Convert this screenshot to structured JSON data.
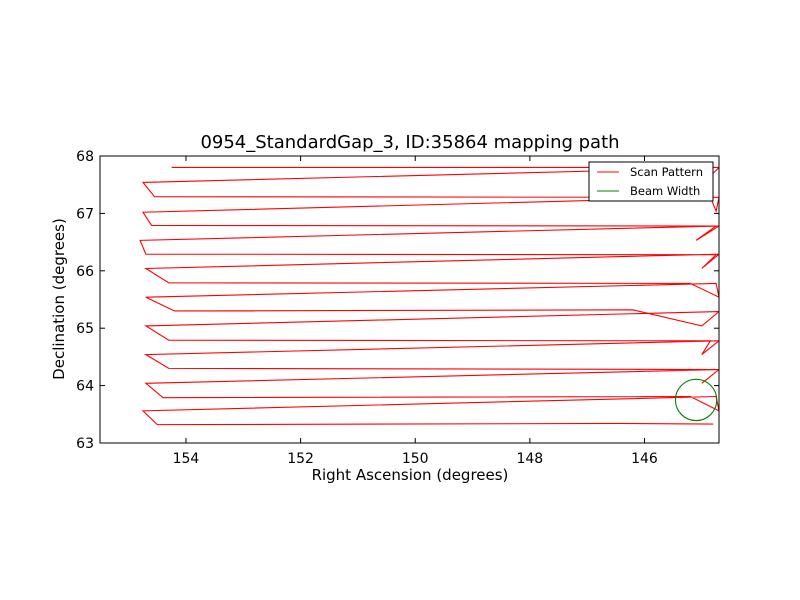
{
  "chart_data": {
    "type": "line",
    "title": "0954_StandardGap_3, ID:35864 mapping path",
    "xlabel": "Right Ascension (degrees)",
    "ylabel": "Declination (degrees)",
    "xlim": [
      155.5,
      144.7
    ],
    "ylim": [
      63,
      68
    ],
    "x_ticks": [
      154,
      152,
      150,
      148,
      146
    ],
    "x_tick_labels": [
      "154",
      "152",
      "150",
      "148",
      "146"
    ],
    "y_ticks": [
      63,
      64,
      65,
      66,
      67,
      68
    ],
    "y_tick_labels": [
      "63",
      "64",
      "65",
      "66",
      "67",
      "68"
    ],
    "grid": false,
    "legend_position": "top-right",
    "colors": {
      "scan": "#ff0000",
      "beam": "#008000"
    },
    "series": [
      {
        "name": "Scan Pattern",
        "kind": "line",
        "points": [
          [
            154.25,
            67.8
          ],
          [
            144.7,
            67.8
          ],
          [
            144.8,
            67.7
          ],
          [
            144.85,
            67.8
          ],
          [
            144.8,
            67.79
          ],
          [
            154.75,
            67.54
          ],
          [
            154.55,
            67.29
          ],
          [
            144.7,
            67.28
          ],
          [
            144.75,
            67.04
          ],
          [
            144.85,
            67.28
          ],
          [
            154.75,
            67.02
          ],
          [
            154.6,
            66.79
          ],
          [
            144.75,
            66.78
          ],
          [
            145.1,
            66.53
          ],
          [
            144.7,
            66.78
          ],
          [
            154.8,
            66.53
          ],
          [
            154.7,
            66.29
          ],
          [
            144.75,
            66.28
          ],
          [
            145.0,
            66.04
          ],
          [
            144.7,
            66.29
          ],
          [
            154.7,
            66.04
          ],
          [
            154.3,
            65.79
          ],
          [
            145.2,
            65.78
          ],
          [
            144.7,
            65.54
          ],
          [
            144.75,
            65.78
          ],
          [
            154.7,
            65.54
          ],
          [
            154.2,
            65.3
          ],
          [
            146.2,
            65.32
          ],
          [
            145.0,
            65.04
          ],
          [
            144.7,
            65.29
          ],
          [
            154.7,
            65.04
          ],
          [
            154.3,
            64.79
          ],
          [
            144.85,
            64.78
          ],
          [
            145.0,
            64.54
          ],
          [
            144.7,
            64.78
          ],
          [
            154.7,
            64.54
          ],
          [
            154.3,
            64.3
          ],
          [
            144.7,
            64.28
          ],
          [
            145.0,
            64.04
          ],
          [
            144.7,
            64.28
          ],
          [
            154.7,
            64.04
          ],
          [
            154.4,
            63.79
          ],
          [
            145.2,
            63.81
          ],
          [
            144.7,
            63.56
          ],
          [
            144.75,
            63.81
          ],
          [
            154.75,
            63.56
          ],
          [
            154.5,
            63.32
          ],
          [
            146.4,
            63.34
          ],
          [
            144.8,
            63.33
          ]
        ]
      },
      {
        "name": "Beam Width",
        "kind": "circle",
        "center": [
          145.1,
          63.75
        ],
        "radius_deg": 0.36
      }
    ]
  }
}
